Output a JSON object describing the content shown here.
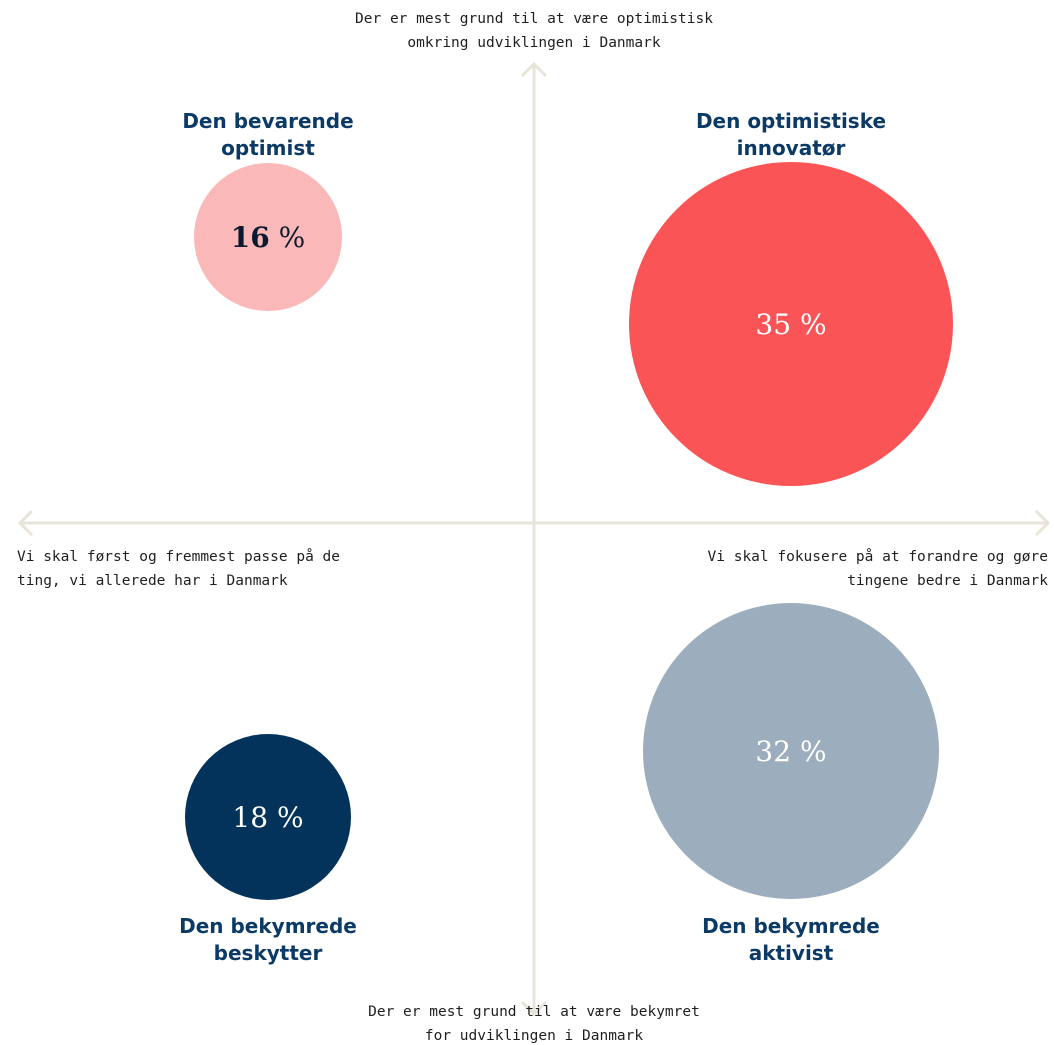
{
  "axes": {
    "top_label": [
      "Der er mest grund til at være optimistisk",
      "omkring udviklingen i Danmark"
    ],
    "bottom_label": [
      "Der er mest grund til at være bekymret",
      "for udviklingen i Danmark"
    ],
    "left_label": [
      "Vi skal først og fremmest passe på de",
      "ting, vi allerede har i Danmark"
    ],
    "right_label": [
      "Vi skal fokusere på at forandre og gøre",
      "tingene bedre i Danmark"
    ],
    "colors": {
      "axis_line": "#e8e4da",
      "axis_text": "#1f1f1f"
    }
  },
  "segments": [
    {
      "id": "bevarende-optimist",
      "title": [
        "Den bevarende",
        "optimist"
      ],
      "value": 16,
      "unit": "%",
      "color": "#fbb8b8",
      "text_color": "#0b1a2e"
    },
    {
      "id": "optimistiske-innovator",
      "title": [
        "Den optimistiske",
        "innovatør"
      ],
      "value": 35,
      "unit": "%",
      "color": "#fb5457",
      "text_color": "#ffffff"
    },
    {
      "id": "bekymrede-beskytter",
      "title": [
        "Den bekymrede",
        "beskytter"
      ],
      "value": 18,
      "unit": "%",
      "color": "#03325a",
      "text_color": "#ffffff"
    },
    {
      "id": "bekymrede-aktivist",
      "title": [
        "Den bekymrede",
        "aktivist"
      ],
      "value": 32,
      "unit": "%",
      "color": "#9caebd",
      "text_color": "#ffffff"
    }
  ],
  "title_color": "#0c3a66"
}
